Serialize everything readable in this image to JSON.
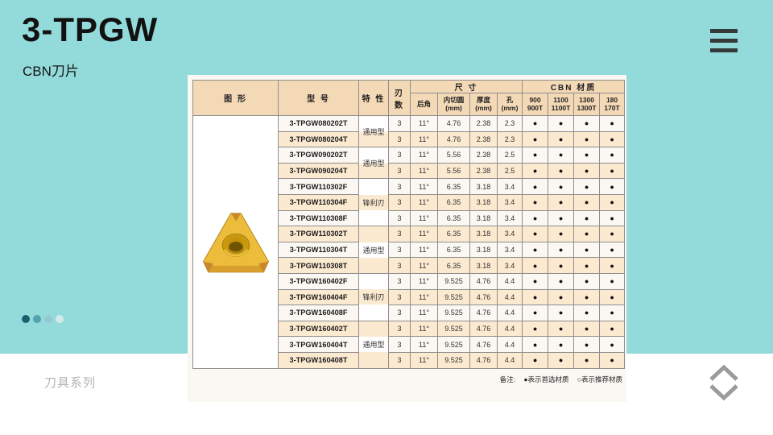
{
  "page": {
    "title": "3-TPGW",
    "subtitle": "CBN刀片",
    "series_label": "刀具系列"
  },
  "note": {
    "prefix": "备注:",
    "preferred": "●表示首选材质",
    "recommended": "○表示推荐材质"
  },
  "icons": {
    "menu": "hamburger-icon",
    "up": "chevron-up-icon",
    "down": "chevron-down-icon",
    "insert_image": "triangular-cbn-insert-photo"
  },
  "colors": {
    "teal_bg": "#93dbda",
    "panel_bg": "#fbf8f3",
    "header_bg": "#f4d9b6",
    "row_alt_bg": "#fbe9d0",
    "border": "#8e8e8e",
    "insert_yellow": "#ecbc3b",
    "dot_colors": [
      "#19616f",
      "#55a0ac",
      "#93cad0",
      "#d2e9ea"
    ]
  },
  "table": {
    "headers": {
      "shape": "图  形",
      "model": "型  号",
      "feature": "特 性",
      "edge_count": "刃 数",
      "dimensions_group": "尺  寸",
      "cbn_group": "CBN 材质",
      "sub": [
        "后角",
        "内切圆\n(mm)",
        "厚度\n(mm)",
        "孔\n(mm)"
      ],
      "cbn_cols": [
        "900\n900T",
        "1100\n1100T",
        "1300\n1300T",
        "180\n170T"
      ]
    },
    "feature_groups": [
      {
        "label": "通用型",
        "start": 0,
        "span": 2
      },
      {
        "label": "通用型",
        "start": 2,
        "span": 2
      },
      {
        "label": "锋利刃",
        "start": 4,
        "span": 3
      },
      {
        "label": "通用型",
        "start": 7,
        "span": 3
      },
      {
        "label": "锋利刃",
        "start": 10,
        "span": 3
      },
      {
        "label": "通用型",
        "start": 13,
        "span": 3
      }
    ],
    "rows": [
      {
        "model": "3-TPGW080202T",
        "edges": "3",
        "angle": "11°",
        "ic": "4.76",
        "thk": "2.38",
        "hole": "2.3",
        "cbn": [
          "●",
          "●",
          "●",
          "●"
        ]
      },
      {
        "model": "3-TPGW080204T",
        "edges": "3",
        "angle": "11°",
        "ic": "4.76",
        "thk": "2.38",
        "hole": "2.3",
        "cbn": [
          "●",
          "●",
          "●",
          "●"
        ]
      },
      {
        "model": "3-TPGW090202T",
        "edges": "3",
        "angle": "11°",
        "ic": "5.56",
        "thk": "2.38",
        "hole": "2.5",
        "cbn": [
          "●",
          "●",
          "●",
          "●"
        ]
      },
      {
        "model": "3-TPGW090204T",
        "edges": "3",
        "angle": "11°",
        "ic": "5.56",
        "thk": "2.38",
        "hole": "2.5",
        "cbn": [
          "●",
          "●",
          "●",
          "●"
        ]
      },
      {
        "model": "3-TPGW110302F",
        "edges": "3",
        "angle": "11°",
        "ic": "6.35",
        "thk": "3.18",
        "hole": "3.4",
        "cbn": [
          "●",
          "●",
          "●",
          "●"
        ]
      },
      {
        "model": "3-TPGW110304F",
        "edges": "3",
        "angle": "11°",
        "ic": "6.35",
        "thk": "3.18",
        "hole": "3.4",
        "cbn": [
          "●",
          "●",
          "●",
          "●"
        ]
      },
      {
        "model": "3-TPGW110308F",
        "edges": "3",
        "angle": "11°",
        "ic": "6.35",
        "thk": "3.18",
        "hole": "3.4",
        "cbn": [
          "●",
          "●",
          "●",
          "●"
        ]
      },
      {
        "model": "3-TPGW110302T",
        "edges": "3",
        "angle": "11°",
        "ic": "6.35",
        "thk": "3.18",
        "hole": "3.4",
        "cbn": [
          "●",
          "●",
          "●",
          "●"
        ]
      },
      {
        "model": "3-TPGW110304T",
        "edges": "3",
        "angle": "11°",
        "ic": "6.35",
        "thk": "3.18",
        "hole": "3.4",
        "cbn": [
          "●",
          "●",
          "●",
          "●"
        ]
      },
      {
        "model": "3-TPGW110308T",
        "edges": "3",
        "angle": "11°",
        "ic": "6.35",
        "thk": "3.18",
        "hole": "3.4",
        "cbn": [
          "●",
          "●",
          "●",
          "●"
        ]
      },
      {
        "model": "3-TPGW160402F",
        "edges": "3",
        "angle": "11°",
        "ic": "9.525",
        "thk": "4.76",
        "hole": "4.4",
        "cbn": [
          "●",
          "●",
          "●",
          "●"
        ]
      },
      {
        "model": "3-TPGW160404F",
        "edges": "3",
        "angle": "11°",
        "ic": "9.525",
        "thk": "4.76",
        "hole": "4.4",
        "cbn": [
          "●",
          "●",
          "●",
          "●"
        ]
      },
      {
        "model": "3-TPGW160408F",
        "edges": "3",
        "angle": "11°",
        "ic": "9.525",
        "thk": "4.76",
        "hole": "4.4",
        "cbn": [
          "●",
          "●",
          "●",
          "●"
        ]
      },
      {
        "model": "3-TPGW160402T",
        "edges": "3",
        "angle": "11°",
        "ic": "9.525",
        "thk": "4.76",
        "hole": "4.4",
        "cbn": [
          "●",
          "●",
          "●",
          "●"
        ]
      },
      {
        "model": "3-TPGW160404T",
        "edges": "3",
        "angle": "11°",
        "ic": "9.525",
        "thk": "4.76",
        "hole": "4.4",
        "cbn": [
          "●",
          "●",
          "●",
          "●"
        ]
      },
      {
        "model": "3-TPGW160408T",
        "edges": "3",
        "angle": "11°",
        "ic": "9.525",
        "thk": "4.76",
        "hole": "4.4",
        "cbn": [
          "●",
          "●",
          "●",
          "●"
        ]
      }
    ]
  }
}
